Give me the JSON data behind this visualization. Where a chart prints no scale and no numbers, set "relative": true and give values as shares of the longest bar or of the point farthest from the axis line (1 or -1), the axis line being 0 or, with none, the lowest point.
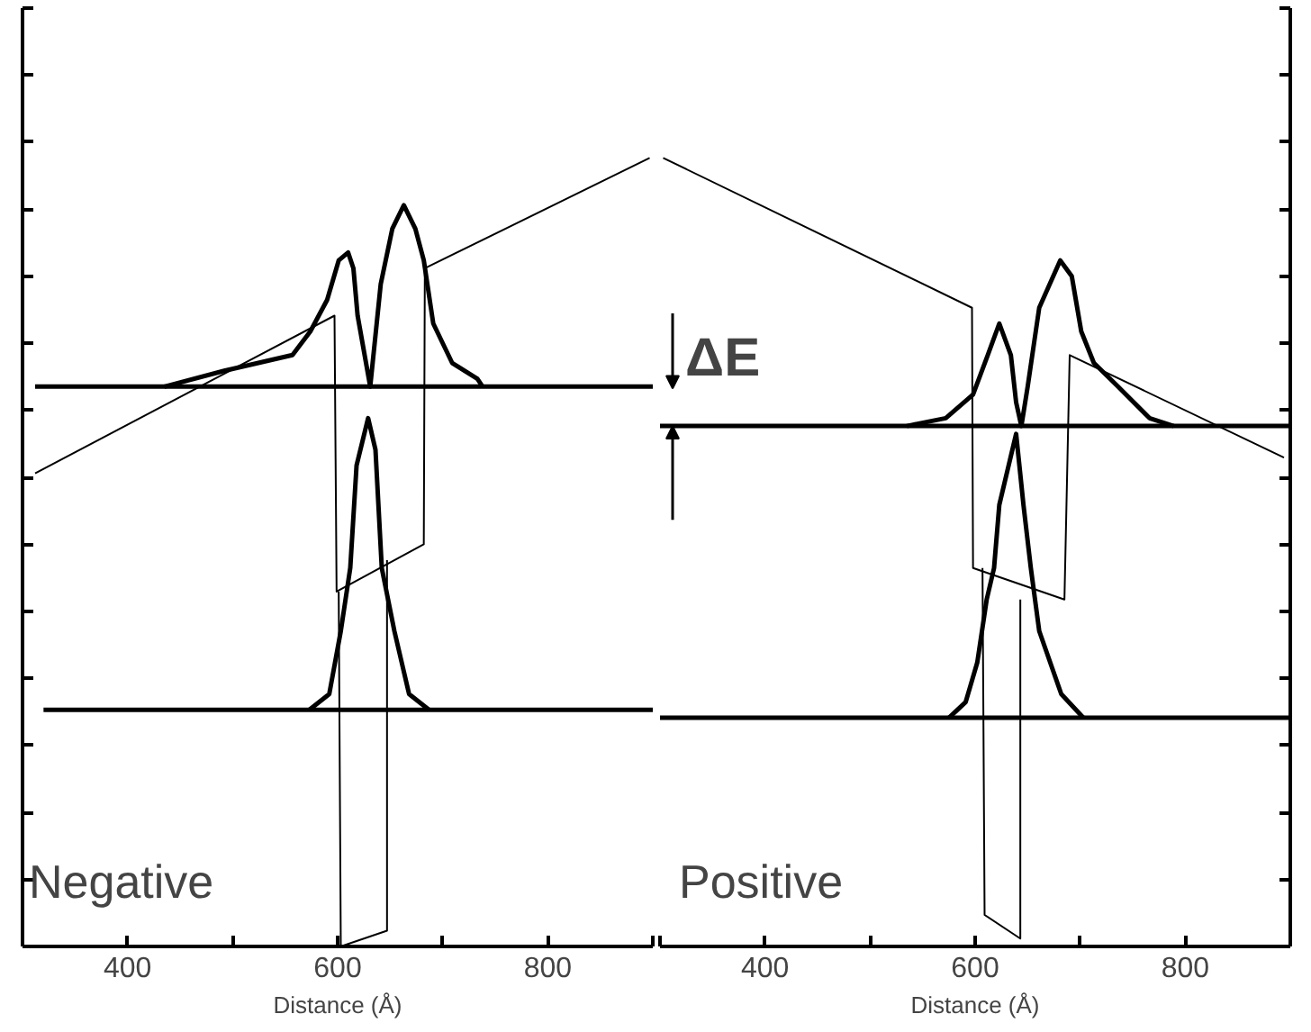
{
  "chart_data": [
    {
      "type": "line",
      "relative": true,
      "xlabel": "Distance (Å)",
      "xlim": [
        300,
        900
      ],
      "xticks": [
        {
          "value": 300,
          "label": null
        },
        400,
        {
          "value": 500,
          "label": null
        },
        600,
        {
          "value": 700,
          "label": null
        },
        800,
        {
          "value": 900,
          "label": null
        }
      ],
      "tick_labels": "x",
      "annotations": [
        "Negative"
      ],
      "series": [
        {
          "color": "#000000",
          "x": [
            312,
            900
          ],
          "values": [
            0.71,
            0.71
          ]
        },
        {
          "color": "#000000",
          "x": [
            320,
            900
          ],
          "values": [
            0.3,
            0.3
          ]
        },
        {
          "color": "#000000",
          "x": [
            435,
            492,
            557,
            574,
            590,
            601,
            610,
            615,
            619,
            631,
            641,
            652,
            663,
            674,
            682,
            691,
            709,
            733,
            738
          ],
          "values": [
            0.71,
            0.73,
            0.75,
            0.78,
            0.82,
            0.87,
            0.88,
            0.86,
            0.8,
            0.71,
            0.84,
            0.91,
            0.94,
            0.91,
            0.87,
            0.79,
            0.74,
            0.72,
            0.71
          ]
        },
        {
          "color": "#000000",
          "x": [
            573,
            592,
            603,
            612,
            618,
            629,
            636,
            642,
            654,
            668,
            687
          ],
          "values": [
            0.3,
            0.32,
            0.4,
            0.48,
            0.61,
            0.67,
            0.63,
            0.48,
            0.4,
            0.32,
            0.3
          ]
        },
        {
          "color": "#000000",
          "x": [
            312,
            597,
            599,
            682,
            683,
            897
          ],
          "values": [
            0.6,
            0.8,
            0.45,
            0.51,
            0.86,
            1.0
          ]
        },
        {
          "color": "#000000",
          "x": [
            601,
            603,
            647,
            647
          ],
          "values": [
            0.45,
            0.0,
            0.02,
            0.49
          ]
        }
      ]
    },
    {
      "type": "line",
      "relative": true,
      "xlabel": "Distance (Å)",
      "xlim": [
        300,
        900
      ],
      "xticks": [
        {
          "value": 300,
          "label": null
        },
        400,
        {
          "value": 500,
          "label": null
        },
        600,
        {
          "value": 700,
          "label": null
        },
        800,
        {
          "value": 900,
          "label": null
        }
      ],
      "tick_labels": "x",
      "annotations": [
        "Positive",
        "ΔE"
      ],
      "series": [
        {
          "color": "#000000",
          "x": [
            300,
            900
          ],
          "values": [
            0.66,
            0.66
          ]
        },
        {
          "color": "#000000",
          "x": [
            300,
            900
          ],
          "values": [
            0.29,
            0.29
          ]
        },
        {
          "color": "#000000",
          "x": [
            535,
            572,
            598,
            612,
            623,
            634,
            639,
            644,
            650,
            661,
            681,
            692,
            701,
            713,
            736,
            766,
            789
          ],
          "values": [
            0.66,
            0.67,
            0.7,
            0.75,
            0.79,
            0.75,
            0.69,
            0.66,
            0.71,
            0.81,
            0.87,
            0.85,
            0.78,
            0.74,
            0.71,
            0.67,
            0.66
          ]
        },
        {
          "color": "#000000",
          "x": [
            575,
            591,
            602,
            611,
            618,
            623,
            639,
            646,
            653,
            661,
            682,
            703
          ],
          "values": [
            0.29,
            0.31,
            0.36,
            0.44,
            0.48,
            0.56,
            0.65,
            0.56,
            0.48,
            0.4,
            0.32,
            0.29
          ]
        },
        {
          "color": "#000000",
          "x": [
            303,
            597,
            598,
            685,
            690,
            894
          ],
          "values": [
            1.0,
            0.81,
            0.48,
            0.44,
            0.75,
            0.62
          ]
        },
        {
          "color": "#000000",
          "x": [
            607,
            609,
            643,
            643
          ],
          "values": [
            0.48,
            0.04,
            0.01,
            0.44
          ]
        }
      ]
    }
  ]
}
